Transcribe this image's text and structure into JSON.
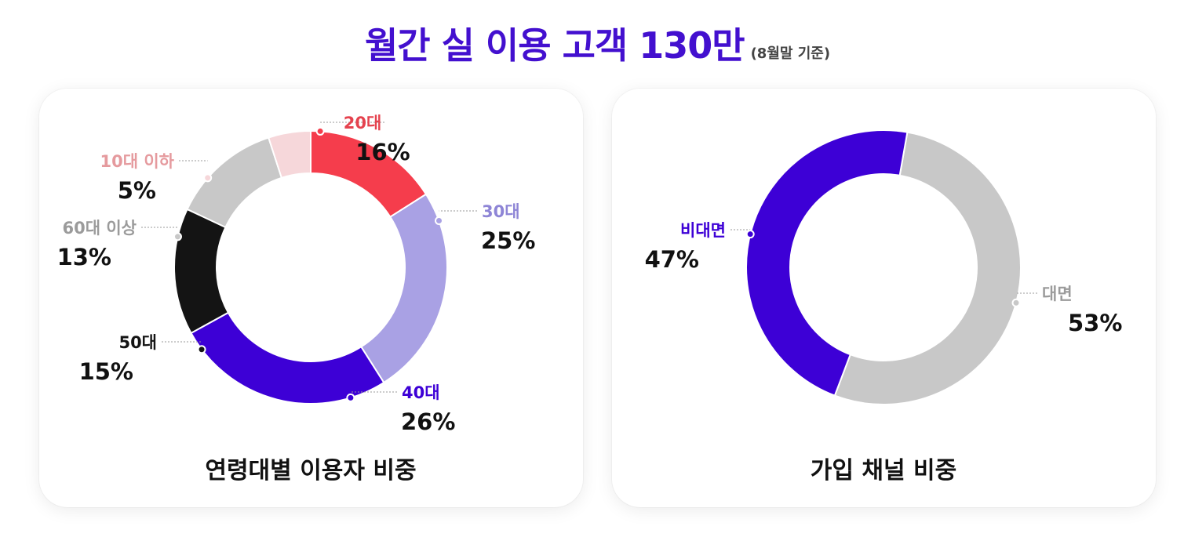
{
  "header": {
    "title": "월간 실 이용 고객 130만",
    "note": "(8월말 기준)"
  },
  "chart_data": [
    {
      "type": "pie",
      "title": "연령대별 이용자 비중",
      "donut": true,
      "slices": [
        {
          "label": "20대",
          "value": 16,
          "value_text": "16%",
          "color": "#F53D4C",
          "label_color": "#E5424E"
        },
        {
          "label": "30대",
          "value": 25,
          "value_text": "25%",
          "color": "#A9A1E4",
          "label_color": "#8E85D6"
        },
        {
          "label": "40대",
          "value": 26,
          "value_text": "26%",
          "color": "#3D00D6",
          "label_color": "#3D00D6"
        },
        {
          "label": "50대",
          "value": 15,
          "value_text": "15%",
          "color": "#141414",
          "label_color": "#141414"
        },
        {
          "label": "60대 이상",
          "value": 13,
          "value_text": "13%",
          "color": "#C8C8C8",
          "label_color": "#9B9B9B"
        },
        {
          "label": "10대 이하",
          "value": 5,
          "value_text": "5%",
          "color": "#F6D7DA",
          "label_color": "#E59A9E"
        }
      ]
    },
    {
      "type": "pie",
      "title": "가입 채널 비중",
      "donut": true,
      "slices": [
        {
          "label": "대면",
          "value": 53,
          "value_text": "53%",
          "color": "#C8C8C8",
          "label_color": "#9B9B9B"
        },
        {
          "label": "비대면",
          "value": 47,
          "value_text": "47%",
          "color": "#3D00D6",
          "label_color": "#3D00D6"
        }
      ]
    }
  ]
}
